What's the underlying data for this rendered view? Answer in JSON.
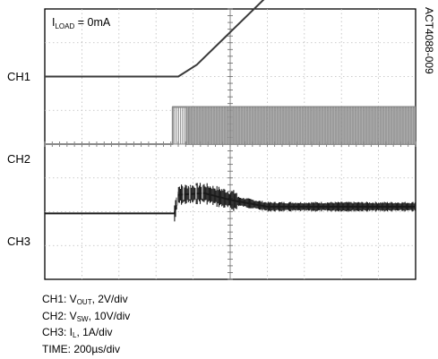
{
  "figure_id": "ACT4088-009",
  "annotation": {
    "main": "I",
    "sub": "LOAD",
    "rest": " = 0mA"
  },
  "channels": [
    {
      "name": "CH1"
    },
    {
      "name": "CH2"
    },
    {
      "name": "CH3"
    }
  ],
  "legend": [
    {
      "pre": "CH1: V",
      "sub": "OUT",
      "post": ", 2V/div"
    },
    {
      "pre": "CH2: V",
      "sub": "SW",
      "post": ", 10V/div"
    },
    {
      "pre": "CH3: I",
      "sub": "L",
      "post": ", 1A/div"
    },
    {
      "pre": "TIME: 200µs/div",
      "sub": "",
      "post": ""
    }
  ],
  "chart_data": {
    "type": "line",
    "title": "",
    "x_divisions": 10,
    "y_divisions": 8,
    "grid": true,
    "series": [
      {
        "name": "CH1",
        "color": "#3a3a3a",
        "x_div": [
          0,
          3.6,
          4.1,
          7.0,
          10
        ],
        "y_div": [
          2.0,
          2.0,
          2.35,
          5.45,
          5.45
        ]
      },
      {
        "name": "CH2",
        "color": "#8a8a8a",
        "x_div": [
          0,
          3.45,
          3.45,
          10
        ],
        "y_div": [
          0.0,
          0.0,
          1.1,
          1.1
        ],
        "switching_start_div": 3.45
      },
      {
        "name": "CH3",
        "color": "#1a1a1a",
        "x_div": [
          0,
          3.5,
          3.6,
          4.3,
          5.0,
          6.0,
          10
        ],
        "y_div": [
          -2.05,
          -2.05,
          -1.5,
          -1.45,
          -1.65,
          -1.85,
          -1.85
        ],
        "ripple_start_div": 3.5
      }
    ]
  }
}
